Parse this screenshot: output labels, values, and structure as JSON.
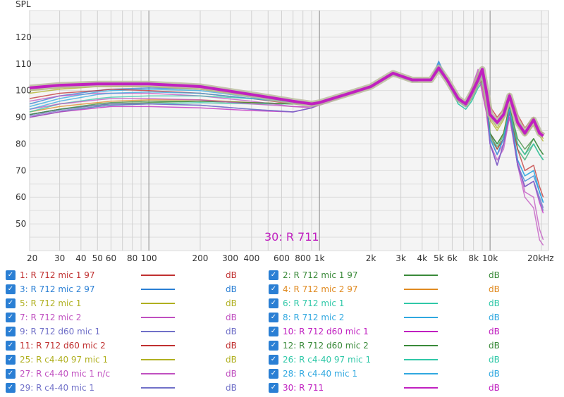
{
  "chart_data": {
    "type": "line",
    "ylabel": "SPL",
    "ylim": [
      40,
      130
    ],
    "xlim": [
      20,
      22000
    ],
    "xscale": "log",
    "grid": true,
    "y_ticks": [
      50,
      60,
      70,
      80,
      90,
      100,
      110,
      120
    ],
    "x_ticks": [
      {
        "v": 20,
        "label": "20"
      },
      {
        "v": 30,
        "label": "30"
      },
      {
        "v": 40,
        "label": "40"
      },
      {
        "v": 50,
        "label": "50"
      },
      {
        "v": 60,
        "label": "60"
      },
      {
        "v": 80,
        "label": "80"
      },
      {
        "v": 100,
        "label": "100"
      },
      {
        "v": 200,
        "label": "200"
      },
      {
        "v": 300,
        "label": "300"
      },
      {
        "v": 400,
        "label": "400"
      },
      {
        "v": 600,
        "label": "600"
      },
      {
        "v": 800,
        "label": "800"
      },
      {
        "v": 1000,
        "label": "1k"
      },
      {
        "v": 2000,
        "label": "2k"
      },
      {
        "v": 3000,
        "label": "3k"
      },
      {
        "v": 4000,
        "label": "4k"
      },
      {
        "v": 5000,
        "label": "5k"
      },
      {
        "v": 6000,
        "label": "6k"
      },
      {
        "v": 8000,
        "label": "8k"
      },
      {
        "v": 10000,
        "label": "10k"
      },
      {
        "v": 20000,
        "label": "20kHz"
      }
    ],
    "annotation": "30: R 711",
    "annotation_color": "#c020c0",
    "x": [
      20,
      30,
      50,
      60,
      100,
      200,
      400,
      700,
      900,
      1000,
      1500,
      2000,
      2700,
      3500,
      4500,
      5000,
      5600,
      6500,
      7200,
      7800,
      8500,
      9000,
      9500,
      10000,
      11000,
      12000,
      13000,
      14500,
      16000,
      18000,
      19500,
      20500
    ],
    "series": [
      {
        "name": "1: R 712 mic 1 97",
        "color": "#c03030",
        "width": 1.5,
        "values": [
          101,
          102,
          102.5,
          102.5,
          102.5,
          101.5,
          98.5,
          96,
          95,
          95.5,
          99,
          101.5,
          106,
          104,
          104,
          107.5,
          104,
          97.5,
          95,
          99,
          104,
          108,
          101,
          94,
          90,
          93,
          99,
          91,
          86,
          90,
          85,
          84
        ]
      },
      {
        "name": "2: R 712 mic 1 97",
        "color": "#3a8a3a",
        "width": 1.5,
        "values": [
          91,
          93,
          94.5,
          95,
          95.5,
          96,
          95.5,
          95,
          95,
          95.5,
          99,
          101.5,
          106,
          104,
          104,
          107.5,
          104,
          96,
          94,
          97,
          102,
          104,
          98,
          84,
          80,
          84,
          94,
          80,
          76,
          82,
          78,
          76
        ]
      },
      {
        "name": "3: R 712 mic 2 97",
        "color": "#2a7fd4",
        "width": 1.5,
        "values": [
          95,
          98,
          100,
          100.5,
          101,
          100.5,
          98,
          96,
          95,
          95.5,
          99,
          101.5,
          106,
          103.5,
          104,
          111,
          104,
          96,
          94,
          98,
          103,
          106,
          98,
          82,
          76,
          82,
          94,
          72,
          66,
          68,
          62,
          58
        ]
      },
      {
        "name": "4: R 712 mic 2 97",
        "color": "#e08a20",
        "width": 1.5,
        "values": [
          92,
          94,
          95.5,
          96,
          96.5,
          96.5,
          95.5,
          95,
          95,
          95.5,
          99,
          101.5,
          106,
          104,
          104,
          108,
          104,
          96,
          94,
          98,
          103,
          105,
          98,
          83,
          78,
          84,
          95,
          78,
          74,
          80,
          76,
          74
        ]
      },
      {
        "name": "5: R 712 mic 1",
        "color": "#b0b020",
        "width": 1.5,
        "values": [
          100,
          101,
          101.5,
          101.5,
          101.5,
          100.5,
          98,
          96,
          95,
          95.5,
          99,
          101.5,
          106,
          104,
          104,
          107.5,
          104,
          97,
          95,
          99,
          104,
          107,
          100,
          90,
          86,
          90,
          98,
          88,
          84,
          88,
          84,
          82
        ]
      },
      {
        "name": "6: R 712 mic 1",
        "color": "#30c8a8",
        "width": 1.5,
        "values": [
          90,
          92,
          94,
          94.5,
          95,
          95.5,
          95,
          95,
          95,
          95.5,
          99,
          101.5,
          106,
          104,
          104,
          107.5,
          103.5,
          95,
          93,
          96,
          101,
          103,
          97,
          82,
          78,
          82,
          92,
          78,
          74,
          80,
          76,
          74
        ]
      },
      {
        "name": "7: R 712 mic 2",
        "color": "#c050c0",
        "width": 1.5,
        "values": [
          96,
          98,
          99,
          99,
          99,
          98,
          96,
          94,
          93.5,
          94.5,
          98.5,
          101,
          106,
          103.5,
          104,
          110,
          104,
          96,
          95,
          101,
          108,
          100,
          92,
          80,
          74,
          78,
          90,
          72,
          60,
          56,
          44,
          42
        ]
      },
      {
        "name": "8: R 712 mic 2",
        "color": "#30a8e0",
        "width": 1.5,
        "values": [
          94,
          97,
          99.5,
          100,
          100.5,
          100,
          97.5,
          95.5,
          95,
          95.5,
          99,
          101.5,
          106,
          103.5,
          104,
          110.5,
          104,
          96,
          94,
          98,
          103,
          106,
          98,
          82,
          76,
          82,
          94,
          74,
          68,
          70,
          62,
          58
        ]
      },
      {
        "name": "9: R 712 d60 mic 1",
        "color": "#7070c8",
        "width": 1.5,
        "values": [
          91,
          93,
          94.5,
          95,
          95,
          94.5,
          93,
          92,
          93.5,
          95,
          99,
          101.5,
          106,
          103.5,
          104,
          108,
          104,
          96,
          94,
          98,
          103,
          106,
          98,
          80,
          72,
          80,
          92,
          72,
          64,
          66,
          60,
          56
        ]
      },
      {
        "name": "10: R 712 d60 mic 1",
        "color": "#c020c0",
        "width": 1.5,
        "values": [
          90,
          92,
          93.5,
          94,
          94,
          93.5,
          92.5,
          92,
          93.5,
          95,
          99,
          101.5,
          106,
          103.5,
          104,
          108,
          104,
          96,
          94,
          98,
          103,
          105,
          97,
          80,
          72,
          80,
          92,
          72,
          64,
          66,
          58,
          54
        ]
      },
      {
        "name": "11: R 712 d60 mic 2",
        "color": "#c03030",
        "width": 1.5,
        "values": [
          97,
          99,
          100,
          100.5,
          100,
          99,
          97,
          95,
          95,
          95.5,
          99,
          101.5,
          106,
          103.5,
          104,
          109,
          104,
          96,
          95,
          100,
          106,
          102,
          94,
          84,
          78,
          82,
          92,
          78,
          70,
          72,
          64,
          60
        ]
      },
      {
        "name": "12: R 712 d60 mic 2",
        "color": "#3a8a3a",
        "width": 1.5,
        "values": [
          91,
          93,
          95,
          95.5,
          96,
          96,
          95.5,
          95,
          95,
          95.5,
          99,
          101.5,
          106,
          104,
          104,
          107.5,
          104,
          96,
          94,
          97,
          102,
          104,
          98,
          84,
          80,
          84,
          94,
          82,
          78,
          82,
          78,
          76
        ]
      },
      {
        "name": "25: R c4-40 97 mic 1",
        "color": "#b0b020",
        "width": 1.5,
        "values": [
          99,
          100.5,
          101.5,
          101.5,
          101.5,
          100.5,
          98,
          96,
          95,
          95.5,
          99,
          101.5,
          106,
          104,
          104,
          107.5,
          104,
          97,
          95,
          99,
          104,
          107,
          100,
          89,
          85,
          89,
          97,
          87,
          83,
          87,
          83,
          81
        ]
      },
      {
        "name": "26: R c4-40 97 mic 1",
        "color": "#30c8a8",
        "width": 1.5,
        "values": [
          92,
          95,
          97,
          97.5,
          98,
          98,
          97,
          96,
          95,
          95.5,
          99,
          101.5,
          106,
          104,
          104,
          107.5,
          103.5,
          95,
          93,
          96,
          101,
          103,
          97,
          83,
          79,
          83,
          93,
          80,
          76,
          80,
          76,
          74
        ]
      },
      {
        "name": "27: R c4-40 mic 1 n/c",
        "color": "#c050c0",
        "width": 1.5,
        "values": [
          93,
          95,
          96.5,
          97,
          97,
          96.5,
          95,
          94,
          94,
          95,
          99,
          101.5,
          106,
          103.5,
          104,
          108.5,
          104,
          96,
          95,
          101,
          107,
          99,
          92,
          82,
          76,
          80,
          90,
          74,
          62,
          60,
          48,
          44
        ]
      },
      {
        "name": "28: R c4-40 mic 1",
        "color": "#30a8e0",
        "width": 1.5,
        "values": [
          93,
          96,
          98.5,
          99,
          99.5,
          99,
          97,
          95.5,
          95,
          95.5,
          99,
          101.5,
          106,
          103.5,
          104,
          109,
          104,
          96,
          94,
          98,
          103,
          105,
          97,
          82,
          76,
          82,
          93,
          74,
          68,
          70,
          62,
          58
        ]
      },
      {
        "name": "29: R c4-40 mic 1",
        "color": "#7070c8",
        "width": 1.5,
        "values": [
          90.5,
          92.5,
          94,
          94.5,
          95,
          94.5,
          93,
          92,
          93.5,
          95,
          99,
          101.5,
          106,
          103.5,
          104,
          108,
          104,
          96,
          94,
          98,
          103,
          105.5,
          97.5,
          80,
          72,
          80,
          92,
          72,
          64,
          66,
          59,
          55
        ]
      },
      {
        "name": "30: R 711",
        "color": "#c020c0",
        "width": 4,
        "values": [
          101,
          102,
          102.5,
          102.5,
          102.5,
          101.5,
          98.5,
          96,
          95,
          95.5,
          99,
          101.5,
          106.5,
          104,
          104,
          108.5,
          104,
          97,
          95,
          99,
          104,
          108,
          100,
          91,
          88,
          91,
          98,
          88,
          84,
          89,
          84,
          83
        ]
      }
    ]
  },
  "legend": {
    "unit": "dB",
    "items": [
      {
        "label": "1: R 712 mic 1 97",
        "color": "#c03030"
      },
      {
        "label": "2: R 712 mic 1 97",
        "color": "#3a8a3a"
      },
      {
        "label": "3: R 712 mic 2 97",
        "color": "#2a7fd4"
      },
      {
        "label": "4: R 712 mic 2 97",
        "color": "#e08a20"
      },
      {
        "label": "5: R 712 mic 1",
        "color": "#b0b020"
      },
      {
        "label": "6: R 712 mic 1",
        "color": "#30c8a8"
      },
      {
        "label": "7: R 712 mic 2",
        "color": "#c050c0"
      },
      {
        "label": "8: R 712 mic 2",
        "color": "#30a8e0"
      },
      {
        "label": "9: R 712 d60 mic 1",
        "color": "#7070c8"
      },
      {
        "label": "10: R 712 d60 mic 1",
        "color": "#c020c0"
      },
      {
        "label": "11: R 712 d60 mic 2",
        "color": "#c03030"
      },
      {
        "label": "12: R 712 d60 mic 2",
        "color": "#3a8a3a"
      },
      {
        "label": "25: R c4-40 97 mic 1",
        "color": "#b0b020"
      },
      {
        "label": "26: R c4-40 97 mic 1",
        "color": "#30c8a8"
      },
      {
        "label": "27: R c4-40 mic 1 n/c",
        "color": "#c050c0"
      },
      {
        "label": "28: R c4-40 mic 1",
        "color": "#30a8e0"
      },
      {
        "label": "29: R c4-40 mic 1",
        "color": "#7070c8"
      },
      {
        "label": "30: R 711",
        "color": "#c020c0"
      }
    ]
  }
}
